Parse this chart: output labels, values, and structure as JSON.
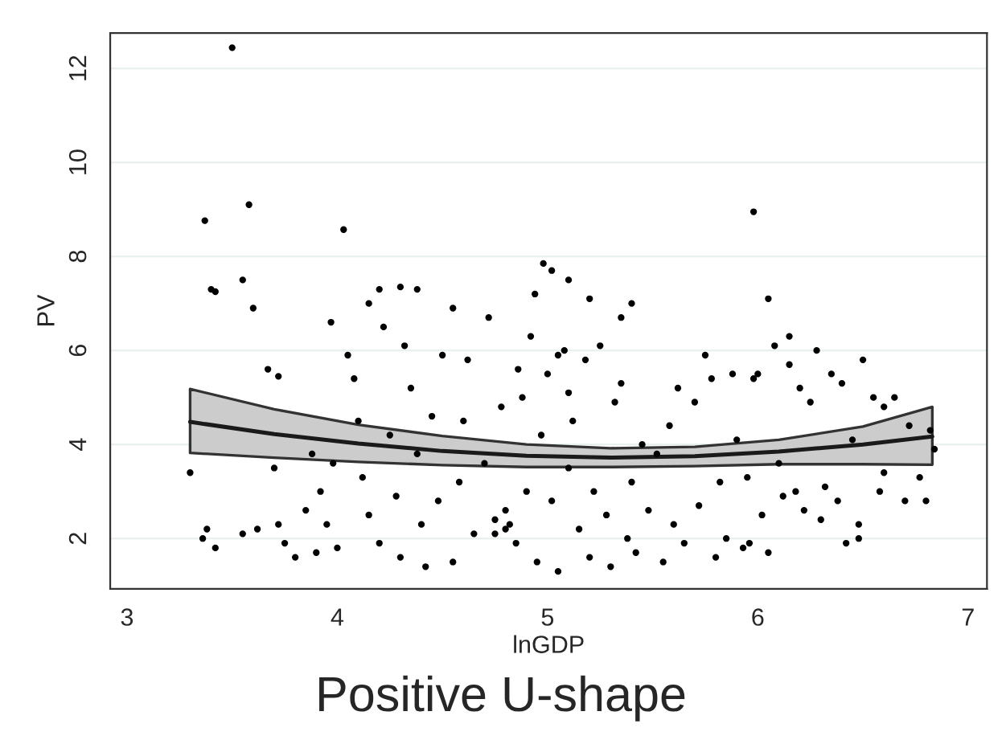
{
  "chart_data": {
    "type": "scatter",
    "xlabel": "lnGDP",
    "ylabel": "PV",
    "annotations": [
      "Positive U-shape"
    ],
    "xlim": [
      2.92,
      7.09
    ],
    "ylim": [
      0.93,
      12.75
    ],
    "xticks": [
      3,
      4,
      5,
      6,
      7
    ],
    "yticks": [
      2,
      4,
      6,
      8,
      10,
      12
    ],
    "grid": "y",
    "series": [
      {
        "color": "#000000",
        "marker": "circle",
        "x": [
          3.5,
          3.37,
          3.58,
          4.03,
          5.98,
          3.4,
          3.42,
          3.55,
          3.6,
          3.67,
          3.72,
          4.2,
          4.3,
          4.38,
          4.55,
          4.98,
          5.02,
          5.1,
          5.2,
          4.94,
          5.4,
          6.05,
          6.0,
          6.15,
          3.3,
          3.38,
          3.36,
          3.42,
          3.55,
          3.62,
          3.72,
          3.75,
          3.8,
          3.85,
          3.9,
          3.92,
          3.95,
          3.98,
          4.0,
          3.7,
          3.88,
          3.97,
          4.05,
          4.08,
          4.1,
          4.12,
          4.15,
          4.2,
          4.22,
          4.25,
          4.28,
          4.3,
          4.35,
          4.38,
          4.4,
          4.42,
          4.45,
          4.48,
          4.5,
          4.15,
          4.32,
          4.55,
          4.58,
          4.6,
          4.62,
          4.65,
          4.7,
          4.72,
          4.75,
          4.78,
          4.8,
          4.82,
          4.85,
          4.88,
          4.9,
          4.92,
          4.95,
          4.97,
          4.75,
          4.8,
          4.86,
          5.0,
          5.02,
          5.05,
          5.08,
          5.1,
          5.12,
          5.15,
          5.18,
          5.2,
          5.22,
          5.25,
          5.28,
          5.3,
          5.32,
          5.35,
          5.38,
          5.4,
          5.42,
          5.45,
          5.48,
          5.1,
          5.05,
          5.35,
          5.52,
          5.55,
          5.58,
          5.6,
          5.62,
          5.65,
          5.7,
          5.72,
          5.78,
          5.8,
          5.82,
          5.85,
          5.88,
          5.9,
          5.93,
          5.95,
          5.98,
          5.96,
          5.75,
          6.02,
          6.05,
          6.08,
          6.1,
          6.12,
          6.15,
          6.18,
          6.2,
          6.22,
          6.25,
          6.28,
          6.3,
          6.32,
          6.35,
          6.38,
          6.4,
          6.42,
          6.45,
          6.48,
          6.5,
          6.55,
          6.58,
          6.6,
          6.65,
          6.7,
          6.72,
          6.77,
          6.8,
          6.82,
          6.84,
          6.48,
          6.6
        ],
        "values": [
          12.44,
          8.76,
          9.1,
          8.57,
          8.95,
          7.3,
          7.25,
          7.5,
          6.9,
          5.6,
          5.45,
          7.3,
          7.35,
          7.3,
          6.9,
          7.85,
          7.7,
          7.5,
          7.1,
          7.2,
          7.0,
          7.1,
          5.5,
          6.3,
          3.4,
          2.2,
          2.0,
          1.8,
          2.1,
          2.2,
          2.3,
          1.9,
          1.6,
          2.6,
          1.7,
          3.0,
          2.3,
          3.6,
          1.8,
          3.5,
          3.8,
          6.6,
          5.9,
          5.4,
          4.5,
          3.3,
          2.5,
          1.9,
          6.5,
          4.2,
          2.9,
          1.6,
          5.2,
          3.8,
          2.3,
          1.4,
          4.6,
          2.8,
          5.9,
          7.0,
          6.1,
          1.5,
          3.2,
          4.5,
          5.8,
          2.1,
          3.6,
          6.7,
          2.4,
          4.8,
          2.2,
          2.3,
          1.9,
          5.0,
          3.0,
          6.3,
          1.5,
          4.2,
          2.1,
          2.6,
          5.6,
          5.5,
          2.8,
          1.3,
          6.0,
          3.5,
          4.5,
          2.2,
          5.8,
          1.6,
          3.0,
          6.1,
          2.5,
          1.4,
          4.9,
          5.3,
          2.0,
          3.2,
          1.7,
          4.0,
          2.6,
          5.1,
          5.9,
          6.7,
          3.8,
          1.5,
          4.4,
          2.3,
          5.2,
          1.9,
          4.9,
          2.7,
          5.4,
          1.6,
          3.2,
          2.0,
          5.5,
          4.1,
          1.8,
          3.3,
          5.4,
          1.9,
          5.9,
          2.5,
          1.7,
          6.1,
          3.6,
          2.9,
          5.7,
          3.0,
          5.2,
          2.6,
          4.9,
          6.0,
          2.4,
          3.1,
          5.5,
          2.8,
          5.3,
          1.9,
          4.1,
          2.3,
          5.8,
          5.0,
          3.0,
          4.8,
          5.0,
          2.8,
          4.4,
          3.3,
          2.8,
          4.3,
          3.9,
          2.0,
          3.4
        ]
      },
      {
        "type": "line",
        "color": "#1a1a1a",
        "marker": "none",
        "x": [
          3.3,
          3.7,
          4.1,
          4.5,
          4.9,
          5.3,
          5.7,
          6.1,
          6.5,
          6.83
        ],
        "values": [
          4.48,
          4.22,
          4.02,
          3.86,
          3.76,
          3.72,
          3.75,
          3.85,
          4.0,
          4.17
        ],
        "lower": [
          3.82,
          3.72,
          3.63,
          3.56,
          3.52,
          3.52,
          3.54,
          3.58,
          3.58,
          3.57
        ],
        "upper": [
          5.18,
          4.75,
          4.42,
          4.18,
          4.0,
          3.92,
          3.95,
          4.1,
          4.38,
          4.8
        ]
      }
    ]
  }
}
